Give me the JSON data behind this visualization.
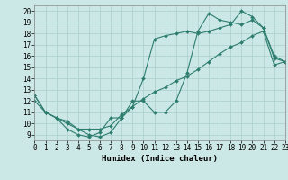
{
  "xlabel": "Humidex (Indice chaleur)",
  "bg_color": "#cce8e6",
  "grid_color": "#aacfcc",
  "line_color": "#2d7d6e",
  "line1_x": [
    0,
    1,
    2,
    3,
    4,
    5,
    6,
    7,
    8,
    9,
    10,
    11,
    12,
    13,
    14,
    15,
    16,
    17,
    18,
    19,
    20,
    21,
    22,
    23
  ],
  "line1_y": [
    12.5,
    11.0,
    10.5,
    10.0,
    9.5,
    9.0,
    8.8,
    9.2,
    10.5,
    11.5,
    14.0,
    17.5,
    17.8,
    18.0,
    18.2,
    18.0,
    18.2,
    18.5,
    18.8,
    20.0,
    19.5,
    18.5,
    16.0,
    15.5
  ],
  "line2_x": [
    0,
    1,
    2,
    3,
    4,
    5,
    6,
    7,
    8,
    9,
    10,
    11,
    12,
    13,
    14,
    15,
    16,
    17,
    18,
    19,
    20,
    21,
    22,
    23
  ],
  "line2_y": [
    12.5,
    11.0,
    10.5,
    9.5,
    9.0,
    8.8,
    9.2,
    10.5,
    10.5,
    12.0,
    12.0,
    11.0,
    11.0,
    12.0,
    14.5,
    18.2,
    19.8,
    19.2,
    19.0,
    18.8,
    19.2,
    18.5,
    15.8,
    15.5
  ],
  "line3_x": [
    0,
    1,
    2,
    3,
    4,
    5,
    6,
    7,
    8,
    9,
    10,
    11,
    12,
    13,
    14,
    15,
    16,
    17,
    18,
    19,
    20,
    21,
    22,
    23
  ],
  "line3_y": [
    12.0,
    11.0,
    10.5,
    10.2,
    9.5,
    9.5,
    9.5,
    9.8,
    10.8,
    11.5,
    12.2,
    12.8,
    13.2,
    13.8,
    14.2,
    14.8,
    15.5,
    16.2,
    16.8,
    17.2,
    17.8,
    18.2,
    15.2,
    15.5
  ],
  "xlim": [
    0,
    23
  ],
  "ylim": [
    8.5,
    20.5
  ],
  "yticks": [
    9,
    10,
    11,
    12,
    13,
    14,
    15,
    16,
    17,
    18,
    19,
    20
  ],
  "xticks": [
    0,
    1,
    2,
    3,
    4,
    5,
    6,
    7,
    8,
    9,
    10,
    11,
    12,
    13,
    14,
    15,
    16,
    17,
    18,
    19,
    20,
    21,
    22,
    23
  ],
  "marker": "D",
  "markersize": 2.0,
  "linewidth": 0.8,
  "tick_fontsize": 5.5,
  "xlabel_fontsize": 6.5
}
